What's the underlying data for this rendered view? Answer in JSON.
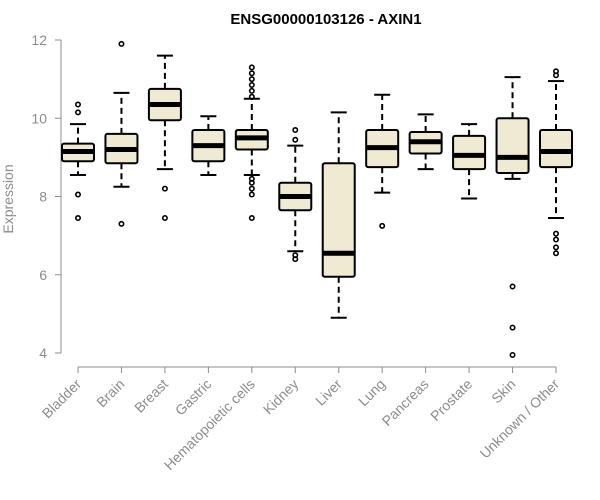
{
  "chart_data": {
    "type": "boxplot",
    "title": "ENSG00000103126 - AXIN1",
    "xlabel": "",
    "ylabel": "Expression",
    "ylim": [
      3.6,
      12.3
    ],
    "yticks": [
      4,
      6,
      8,
      10,
      12
    ],
    "categories": [
      "Bladder",
      "Brain",
      "Breast",
      "Gastric",
      "Hematopoietic cells",
      "Kidney",
      "Liver",
      "Lung",
      "Pancreas",
      "Prostate",
      "Skin",
      "Unknown / Other"
    ],
    "boxes": [
      {
        "q1": 8.9,
        "median": 9.15,
        "q3": 9.35,
        "whisker_low": 8.55,
        "whisker_high": 9.85,
        "outliers": [
          7.45,
          8.05,
          10.15,
          10.35
        ]
      },
      {
        "q1": 8.85,
        "median": 9.2,
        "q3": 9.6,
        "whisker_low": 8.25,
        "whisker_high": 10.65,
        "outliers": [
          7.3,
          11.9
        ]
      },
      {
        "q1": 9.95,
        "median": 10.35,
        "q3": 10.75,
        "whisker_low": 8.7,
        "whisker_high": 11.6,
        "outliers": [
          7.45,
          8.2
        ]
      },
      {
        "q1": 8.9,
        "median": 9.3,
        "q3": 9.7,
        "whisker_low": 8.55,
        "whisker_high": 10.05,
        "outliers": []
      },
      {
        "q1": 9.2,
        "median": 9.5,
        "q3": 9.7,
        "whisker_low": 8.55,
        "whisker_high": 10.5,
        "outliers": [
          7.45,
          8.05,
          8.2,
          8.35,
          8.45,
          10.55,
          10.7,
          10.85,
          11.0,
          11.15,
          11.3
        ]
      },
      {
        "q1": 7.65,
        "median": 8.0,
        "q3": 8.35,
        "whisker_low": 6.6,
        "whisker_high": 9.3,
        "outliers": [
          6.4,
          6.5,
          9.45,
          9.7
        ]
      },
      {
        "q1": 5.95,
        "median": 6.55,
        "q3": 8.85,
        "whisker_low": 4.9,
        "whisker_high": 10.15,
        "outliers": []
      },
      {
        "q1": 8.75,
        "median": 9.25,
        "q3": 9.7,
        "whisker_low": 8.1,
        "whisker_high": 10.6,
        "outliers": [
          7.25
        ]
      },
      {
        "q1": 9.1,
        "median": 9.4,
        "q3": 9.65,
        "whisker_low": 8.7,
        "whisker_high": 10.1,
        "outliers": []
      },
      {
        "q1": 8.7,
        "median": 9.05,
        "q3": 9.55,
        "whisker_low": 7.95,
        "whisker_high": 9.85,
        "outliers": []
      },
      {
        "q1": 8.6,
        "median": 9.0,
        "q3": 10.0,
        "whisker_low": 8.45,
        "whisker_high": 11.05,
        "outliers": [
          3.95,
          4.65,
          5.7
        ]
      },
      {
        "q1": 8.75,
        "median": 9.15,
        "q3": 9.7,
        "whisker_low": 7.45,
        "whisker_high": 10.95,
        "outliers": [
          6.55,
          6.7,
          6.9,
          7.05,
          11.1,
          11.2
        ]
      }
    ]
  }
}
